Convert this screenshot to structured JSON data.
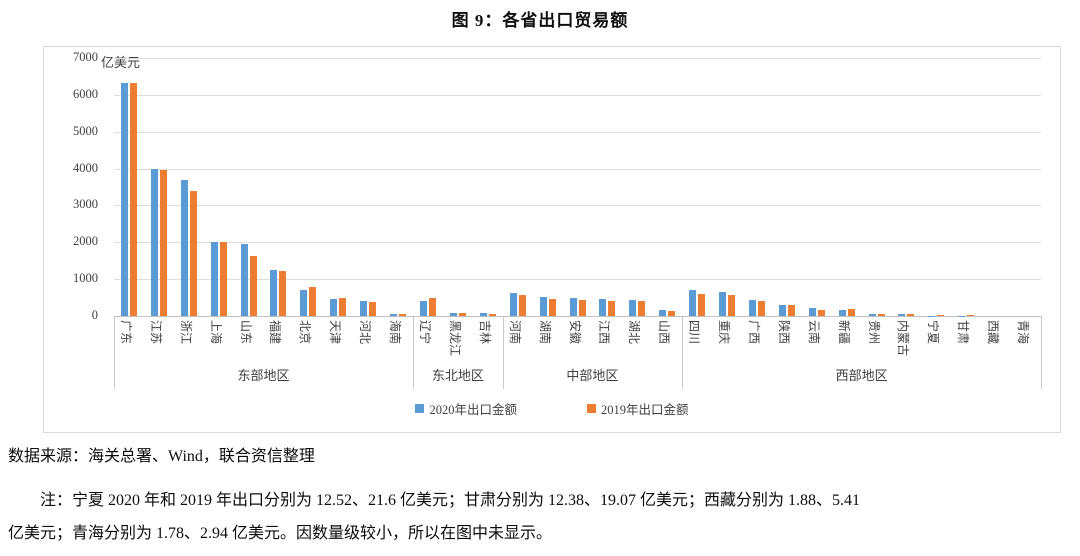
{
  "title": "图 9：各省出口贸易额",
  "chart_data": {
    "type": "bar",
    "title": "图 9：各省出口贸易额",
    "unit": "亿美元",
    "ylim": [
      0,
      7000
    ],
    "y_ticks": [
      0,
      1000,
      2000,
      3000,
      4000,
      5000,
      6000,
      7000
    ],
    "grid": "horizontal",
    "legend_position": "bottom",
    "categories": [
      "广东",
      "江苏",
      "浙江",
      "上海",
      "山东",
      "福建",
      "北京",
      "天津",
      "河北",
      "海南",
      "辽宁",
      "黑龙江",
      "吉林",
      "河南",
      "湖南",
      "安徽",
      "江西",
      "湖北",
      "山西",
      "四川",
      "重庆",
      "广西",
      "陕西",
      "云南",
      "新疆",
      "贵州",
      "内蒙古",
      "宁夏",
      "甘肃",
      "西藏",
      "青海"
    ],
    "groups": [
      {
        "label": "东部地区",
        "start": 0,
        "end": 9
      },
      {
        "label": "东北地区",
        "start": 10,
        "end": 12
      },
      {
        "label": "中部地区",
        "start": 13,
        "end": 18
      },
      {
        "label": "西部地区",
        "start": 19,
        "end": 30
      }
    ],
    "series": [
      {
        "name": "2020年出口金额",
        "color": "#5B9BD5",
        "values": [
          6320,
          3990,
          3680,
          2000,
          1940,
          1250,
          700,
          455,
          400,
          57,
          420,
          88,
          73,
          630,
          505,
          487,
          460,
          433,
          153,
          695,
          650,
          425,
          305,
          220,
          165,
          60,
          55,
          12.52,
          12.38,
          1.88,
          1.78
        ]
      },
      {
        "name": "2019年出口金额",
        "color": "#ED7D31",
        "values": [
          6330,
          3960,
          3380,
          2020,
          1640,
          1230,
          780,
          475,
          380,
          65,
          490,
          80,
          64,
          570,
          460,
          442,
          397,
          397,
          127,
          590,
          570,
          415,
          295,
          150,
          185,
          48,
          53,
          21.6,
          19.07,
          5.41,
          2.94
        ]
      }
    ],
    "not_displayed_note": [
      "宁夏",
      "甘肃",
      "西藏",
      "青海"
    ]
  },
  "footer": {
    "source": "数据来源：海关总署、Wind，联合资信整理",
    "note_line1": "注：宁夏 2020 年和 2019 年出口分别为 12.52、21.6 亿美元；甘肃分别为 12.38、19.07 亿美元；西藏分别为 1.88、5.41",
    "note_line2": "亿美元；青海分别为 1.78、2.94 亿美元。因数量级较小，所以在图中未显示。"
  }
}
